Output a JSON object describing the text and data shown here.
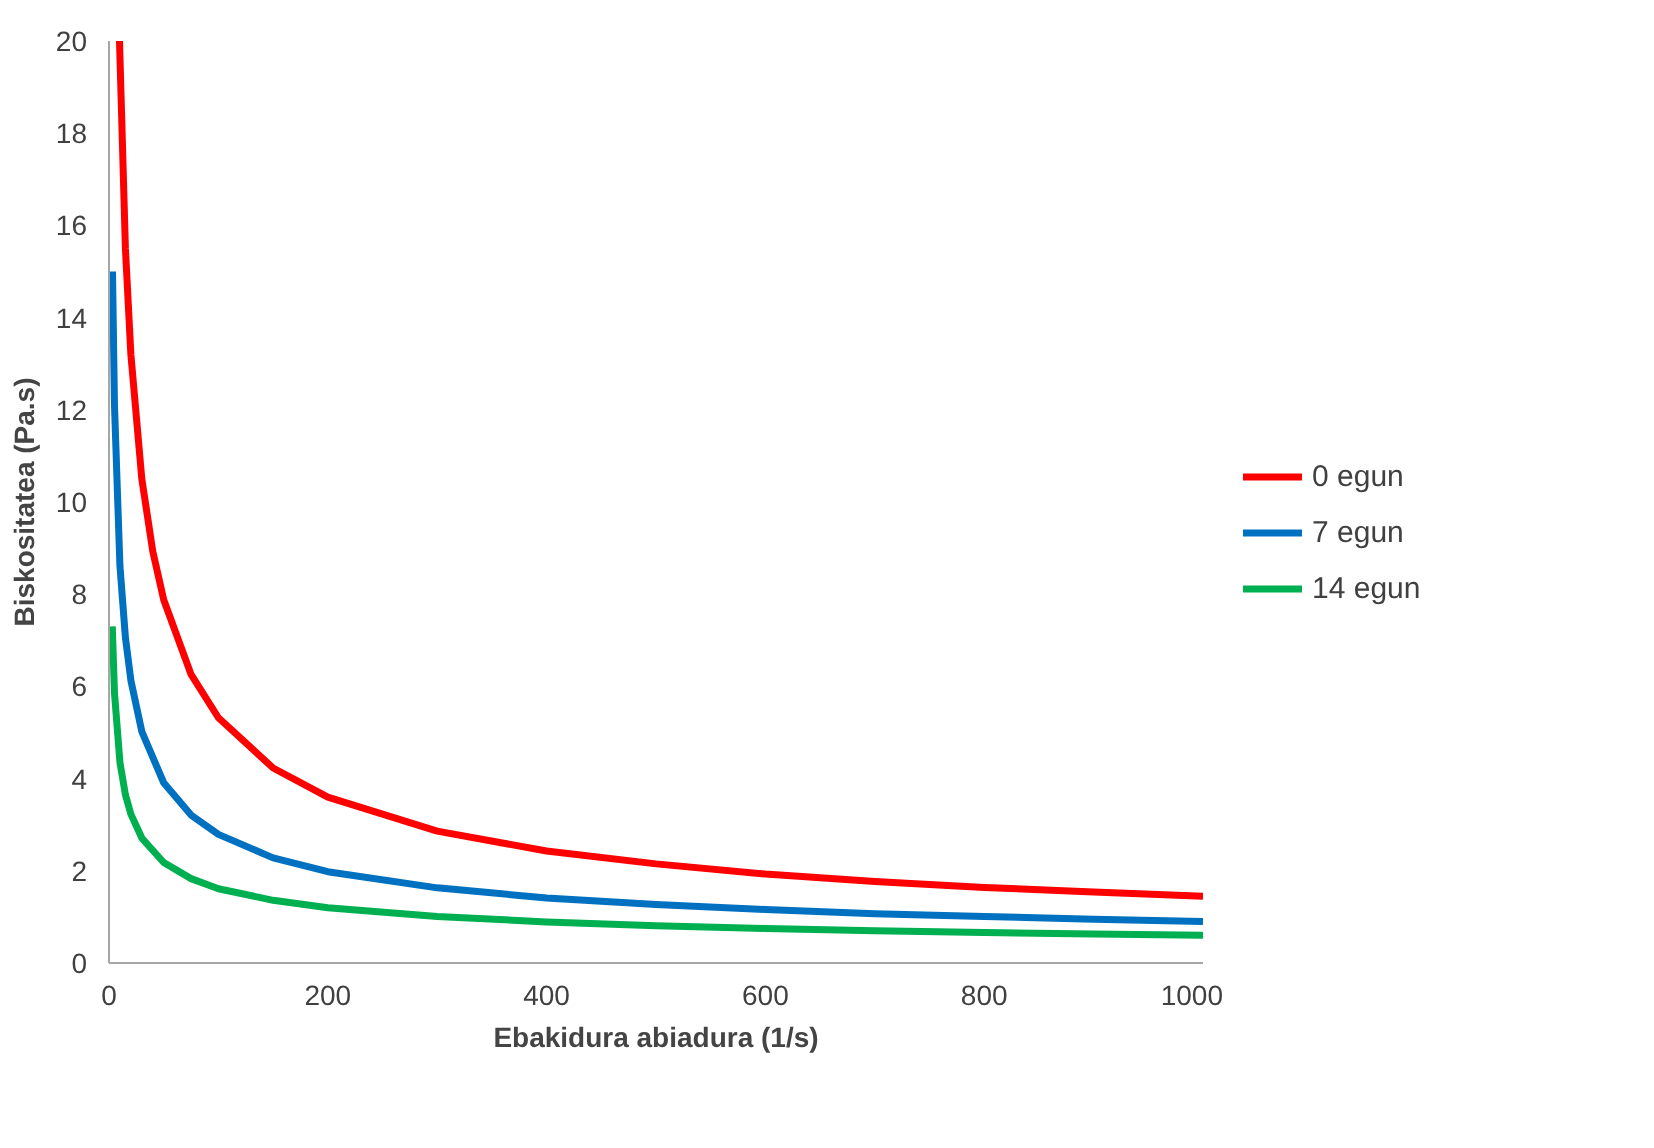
{
  "chart_data": {
    "type": "line",
    "xlabel": "Ebakidura abiadura (1/s)",
    "ylabel": "Biskositatea (Pa.s)",
    "xlim": [
      0,
      1000
    ],
    "xticks": [
      0,
      200,
      400,
      600,
      800,
      1000
    ],
    "ylim": [
      0,
      20
    ],
    "yticks": [
      0,
      2,
      4,
      6,
      8,
      10,
      12,
      14,
      16,
      18,
      20
    ],
    "grid": false,
    "legend": "right",
    "marker": "none",
    "line_style": "solid",
    "series": [
      {
        "name": "0 egun",
        "color": "#ff0000",
        "x": [
          9.6,
          15,
          20,
          30,
          40,
          50,
          75,
          100,
          150,
          200,
          300,
          400,
          500,
          600,
          700,
          800,
          900,
          1000
        ],
        "values": [
          20.0,
          15.5,
          13.2,
          10.5,
          8.93,
          7.88,
          6.26,
          5.32,
          4.23,
          3.6,
          2.86,
          2.43,
          2.15,
          1.93,
          1.77,
          1.64,
          1.54,
          1.45
        ]
      },
      {
        "name": "7 egun",
        "color": "#0070c0",
        "x": [
          3.2,
          5,
          10,
          15,
          20,
          30,
          50,
          75,
          100,
          150,
          200,
          300,
          400,
          500,
          600,
          700,
          800,
          900,
          1000
        ],
        "values": [
          15.0,
          12.1,
          8.61,
          7.06,
          6.13,
          5.02,
          3.91,
          3.21,
          2.79,
          2.28,
          1.98,
          1.63,
          1.41,
          1.27,
          1.16,
          1.07,
          1.01,
          0.95,
          0.9
        ]
      },
      {
        "name": "14 egun",
        "color": "#00b050",
        "x": [
          3,
          5,
          10,
          15,
          20,
          30,
          50,
          75,
          100,
          150,
          200,
          300,
          400,
          500,
          600,
          700,
          800,
          900,
          1000
        ],
        "values": [
          7.3,
          5.86,
          4.35,
          3.65,
          3.23,
          2.71,
          2.18,
          1.83,
          1.61,
          1.36,
          1.2,
          1.01,
          0.89,
          0.81,
          0.75,
          0.7,
          0.66,
          0.63,
          0.6
        ]
      }
    ]
  }
}
